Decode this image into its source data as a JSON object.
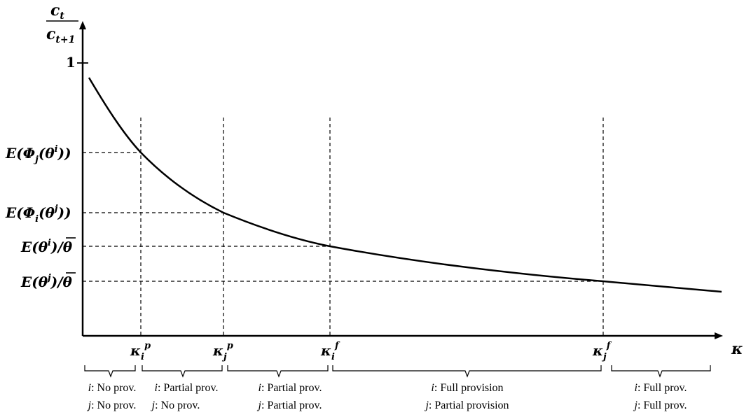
{
  "y_axis": {
    "label_num": "c",
    "label_num_sub": "t",
    "label_den": "c",
    "label_den_sub": "t+1",
    "tick_one": "1"
  },
  "x_axis": {
    "label": "κ"
  },
  "y_markers": [
    {
      "id": "phi-j-theta-i",
      "t1": "E(",
      "t2": "Φ",
      "t3": "j",
      "t4": "(θ",
      "t5": "i",
      "t6": "))"
    },
    {
      "id": "phi-i-theta-j",
      "t1": "E(",
      "t2": "Φ",
      "t3": "i",
      "t4": "(θ",
      "t5": "j",
      "t6": "))"
    },
    {
      "id": "theta-i-bar",
      "t1": "E(θ",
      "t2": "i",
      "t3": ")/",
      "t4": "θ",
      "t5": "",
      "t6": ""
    },
    {
      "id": "theta-j-bar",
      "t1": "E(θ",
      "t2": "j",
      "t3": ")/",
      "t4": "θ",
      "t5": "",
      "t6": ""
    }
  ],
  "x_markers": [
    {
      "base": "κ",
      "sub": "i",
      "sup": "p"
    },
    {
      "base": "κ",
      "sub": "j",
      "sup": "p"
    },
    {
      "base": "κ",
      "sub": "i",
      "sup": "f"
    },
    {
      "base": "κ",
      "sub": "j",
      "sup": "f"
    }
  ],
  "regions": [
    {
      "line1_agent": "i",
      "line1_text": ": No prov.",
      "line2_agent": "j",
      "line2_text": ": No prov."
    },
    {
      "line1_agent": "i",
      "line1_text": ": Partial prov.",
      "line2_agent": "j",
      "line2_text": ": No prov."
    },
    {
      "line1_agent": "i",
      "line1_text": ": Partial prov.",
      "line2_agent": "j",
      "line2_text": ": Partial prov."
    },
    {
      "line1_agent": "i",
      "line1_text": ": Full provision",
      "line2_agent": "j",
      "line2_text": ": Partial provision"
    },
    {
      "line1_agent": "i",
      "line1_text": ": Full prov.",
      "line2_agent": "j",
      "line2_text": ": Full prov."
    }
  ]
}
